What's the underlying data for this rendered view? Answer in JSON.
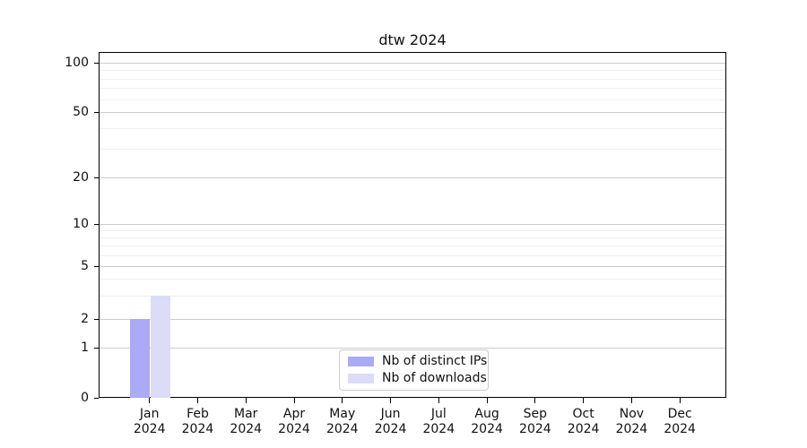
{
  "figure": {
    "title": "dtw 2024"
  },
  "chart_data": {
    "type": "bar",
    "title": "dtw 2024",
    "categories": [
      "Jan 2024",
      "Feb 2024",
      "Mar 2024",
      "Apr 2024",
      "May 2024",
      "Jun 2024",
      "Jul 2024",
      "Aug 2024",
      "Sep 2024",
      "Oct 2024",
      "Nov 2024",
      "Dec 2024"
    ],
    "series": [
      {
        "name": "Nb of distinct IPs",
        "color": "#aaaaf6",
        "values": [
          2,
          0,
          0,
          0,
          0,
          0,
          0,
          0,
          0,
          0,
          0,
          0
        ]
      },
      {
        "name": "Nb of downloads",
        "color": "#dcdcf8",
        "values": [
          3,
          0,
          0,
          0,
          0,
          0,
          0,
          0,
          0,
          0,
          0,
          0
        ]
      }
    ],
    "xlabel": "",
    "ylabel": "",
    "yscale": "symlog",
    "ylim": [
      0,
      115
    ],
    "y_major_ticks": [
      0,
      1,
      2,
      5,
      10,
      20,
      50,
      100
    ],
    "y_minor_gridlines": [
      3,
      4,
      6,
      7,
      8,
      9,
      30,
      40,
      60,
      70,
      80,
      90
    ],
    "grid": "horizontal major+minor",
    "legend_position": "lower center"
  },
  "colors": {
    "major_grid": "#cccccc",
    "minor_grid": "#efefef",
    "axis": "#000000",
    "legend_border": "#cccccc"
  }
}
